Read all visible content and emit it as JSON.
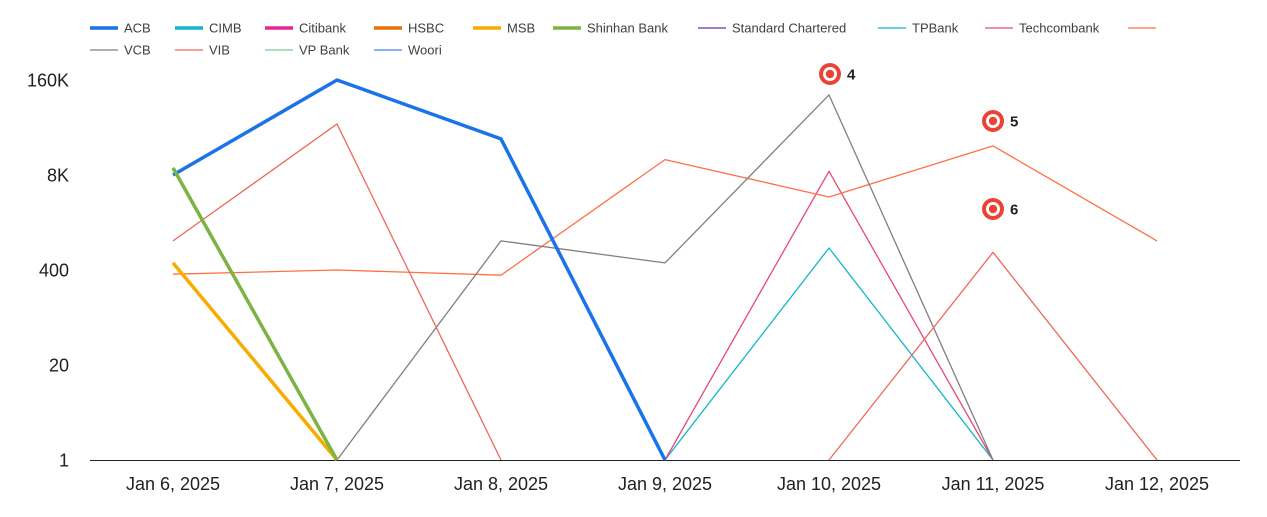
{
  "chart_data": {
    "type": "line",
    "title": "",
    "xlabel": "",
    "ylabel": "",
    "y_scale": "log",
    "ylim": [
      1,
      160000
    ],
    "y_ticks": [
      "1",
      "20",
      "400",
      "8K",
      "160K"
    ],
    "y_tick_values": [
      1,
      20,
      400,
      8000,
      160000
    ],
    "categories": [
      "Jan 6, 2025",
      "Jan 7, 2025",
      "Jan 8, 2025",
      "Jan 9, 2025",
      "Jan 10, 2025",
      "Jan 11, 2025",
      "Jan 12, 2025"
    ],
    "grid": false,
    "legend_position": "top",
    "series": [
      {
        "name": "ACB",
        "color": "#1a73e8",
        "bold": true,
        "values": [
          8000,
          160000,
          25000,
          1,
          null,
          null,
          null
        ]
      },
      {
        "name": "CIMB",
        "color": "#12b5cb",
        "bold": true,
        "values": [
          null,
          null,
          null,
          null,
          null,
          null,
          null
        ]
      },
      {
        "name": "Citibank",
        "color": "#e52592",
        "bold": true,
        "values": [
          null,
          null,
          null,
          null,
          null,
          null,
          null
        ]
      },
      {
        "name": "HSBC",
        "color": "#e8710a",
        "bold": true,
        "values": [
          null,
          null,
          null,
          null,
          null,
          null,
          null
        ]
      },
      {
        "name": "MSB",
        "color": "#f9ab00",
        "bold": true,
        "values": [
          500,
          1,
          null,
          null,
          null,
          null,
          null
        ]
      },
      {
        "name": "Shinhan Bank",
        "color": "#7cb342",
        "bold": true,
        "values": [
          10000,
          1,
          null,
          null,
          null,
          null,
          null
        ]
      },
      {
        "name": "Standard Chartered",
        "color": "#5e35b1",
        "bold": false,
        "values": [
          null,
          null,
          null,
          null,
          null,
          null,
          null
        ]
      },
      {
        "name": "TPBank",
        "color": "#12b5cb",
        "bold": false,
        "values": [
          null,
          null,
          null,
          1,
          800,
          1,
          null
        ]
      },
      {
        "name": "Techcombank",
        "color": "#e8477a",
        "bold": false,
        "values": [
          null,
          null,
          null,
          1,
          9000,
          1,
          null
        ]
      },
      {
        "name": "",
        "color": "#ff7043",
        "bold": false,
        "values": [
          350,
          400,
          340,
          13000,
          4000,
          20000,
          1000
        ]
      },
      {
        "name": "VCB",
        "color": "#7f7f7f",
        "bold": false,
        "values": [
          null,
          1,
          1000,
          500,
          100000,
          1,
          null
        ]
      },
      {
        "name": "VIB",
        "color": "#ee675c",
        "bold": false,
        "values": [
          1000,
          40000,
          1,
          null,
          1,
          700,
          1
        ]
      },
      {
        "name": "VP Bank",
        "color": "#81c995",
        "bold": false,
        "values": [
          null,
          null,
          null,
          null,
          null,
          null,
          null
        ]
      },
      {
        "name": "Woori",
        "color": "#4285f4",
        "bold": false,
        "values": [
          null,
          null,
          null,
          null,
          null,
          null,
          null
        ]
      }
    ],
    "annotations": [
      {
        "label": "4",
        "x": "Jan 10, 2025"
      },
      {
        "label": "5",
        "x": "Jan 11, 2025"
      },
      {
        "label": "6",
        "x": "Jan 11, 2025"
      }
    ]
  }
}
